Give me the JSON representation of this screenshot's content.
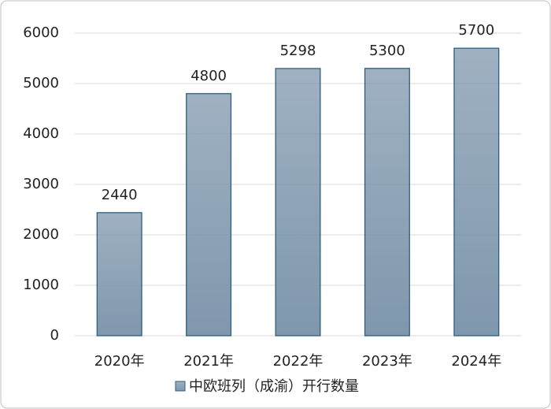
{
  "chart_data": {
    "type": "bar",
    "categories": [
      "2020年",
      "2021年",
      "2022年",
      "2023年",
      "2024年"
    ],
    "series": [
      {
        "name": "中欧班列（成渝）开行数量",
        "color": "#7f97ad",
        "values": [
          2440,
          4800,
          5298,
          5300,
          5700
        ]
      }
    ],
    "ylim": [
      0,
      6000
    ],
    "yticks": [
      0,
      1000,
      2000,
      3000,
      4000,
      5000,
      6000
    ],
    "grid": true,
    "legend": "bottom"
  }
}
